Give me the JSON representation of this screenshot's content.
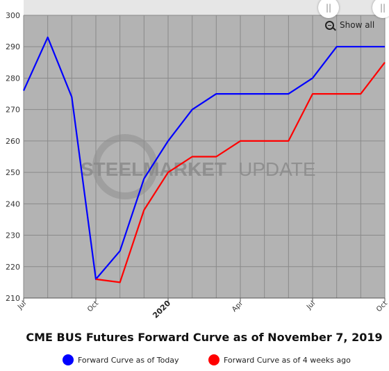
{
  "title": "CME BUS Futures Forward Curve as of November 7, 2019",
  "watermark": {
    "bold": "STEELMARKET",
    "light": "UPDATE"
  },
  "show_all_label": "Show all",
  "nav": {
    "left_handle": "||",
    "right_handle": "||"
  },
  "legend": [
    {
      "label": "Forward Curve as of Today",
      "color": "#0000ff"
    },
    {
      "label": "Forward Curve as of 4 weeks ago",
      "color": "#ff0000"
    }
  ],
  "chart_data": {
    "type": "line",
    "title": "CME BUS Futures Forward Curve as of November 7, 2019",
    "xlabel": "",
    "ylabel": "",
    "x_tick_labels": [
      "Jul",
      "Oct",
      "2020",
      "Apr",
      "Jul",
      "Oct"
    ],
    "x_tick_dates": [
      "2019-07",
      "2019-10",
      "2020-01",
      "2020-04",
      "2020-07",
      "2020-10"
    ],
    "xlim": [
      "2019-07",
      "2020-10"
    ],
    "ylim": [
      210,
      300
    ],
    "y_ticks": [
      210,
      220,
      230,
      240,
      250,
      260,
      270,
      280,
      290,
      300
    ],
    "grid": true,
    "legend_position": "bottom",
    "series": [
      {
        "name": "Forward Curve as of Today",
        "color": "#0000ff",
        "points": [
          {
            "x": "2019-07",
            "y": 276
          },
          {
            "x": "2019-08",
            "y": 293
          },
          {
            "x": "2019-09",
            "y": 274
          },
          {
            "x": "2019-10",
            "y": 216
          },
          {
            "x": "2019-11",
            "y": 225
          },
          {
            "x": "2019-12",
            "y": 248
          },
          {
            "x": "2020-01",
            "y": 260
          },
          {
            "x": "2020-02",
            "y": 270
          },
          {
            "x": "2020-03",
            "y": 275
          },
          {
            "x": "2020-04",
            "y": 275
          },
          {
            "x": "2020-05",
            "y": 275
          },
          {
            "x": "2020-06",
            "y": 275
          },
          {
            "x": "2020-07",
            "y": 280
          },
          {
            "x": "2020-08",
            "y": 290
          },
          {
            "x": "2020-09",
            "y": 290
          },
          {
            "x": "2020-10",
            "y": 290
          }
        ]
      },
      {
        "name": "Forward Curve as of 4 weeks ago",
        "color": "#ff0000",
        "points": [
          {
            "x": "2019-10",
            "y": 216
          },
          {
            "x": "2019-11",
            "y": 215
          },
          {
            "x": "2019-12",
            "y": 238
          },
          {
            "x": "2020-01",
            "y": 250
          },
          {
            "x": "2020-02",
            "y": 255
          },
          {
            "x": "2020-03",
            "y": 255
          },
          {
            "x": "2020-04",
            "y": 260
          },
          {
            "x": "2020-05",
            "y": 260
          },
          {
            "x": "2020-06",
            "y": 260
          },
          {
            "x": "2020-07",
            "y": 275
          },
          {
            "x": "2020-08",
            "y": 275
          },
          {
            "x": "2020-09",
            "y": 275
          },
          {
            "x": "2020-10",
            "y": 285
          }
        ]
      }
    ]
  }
}
